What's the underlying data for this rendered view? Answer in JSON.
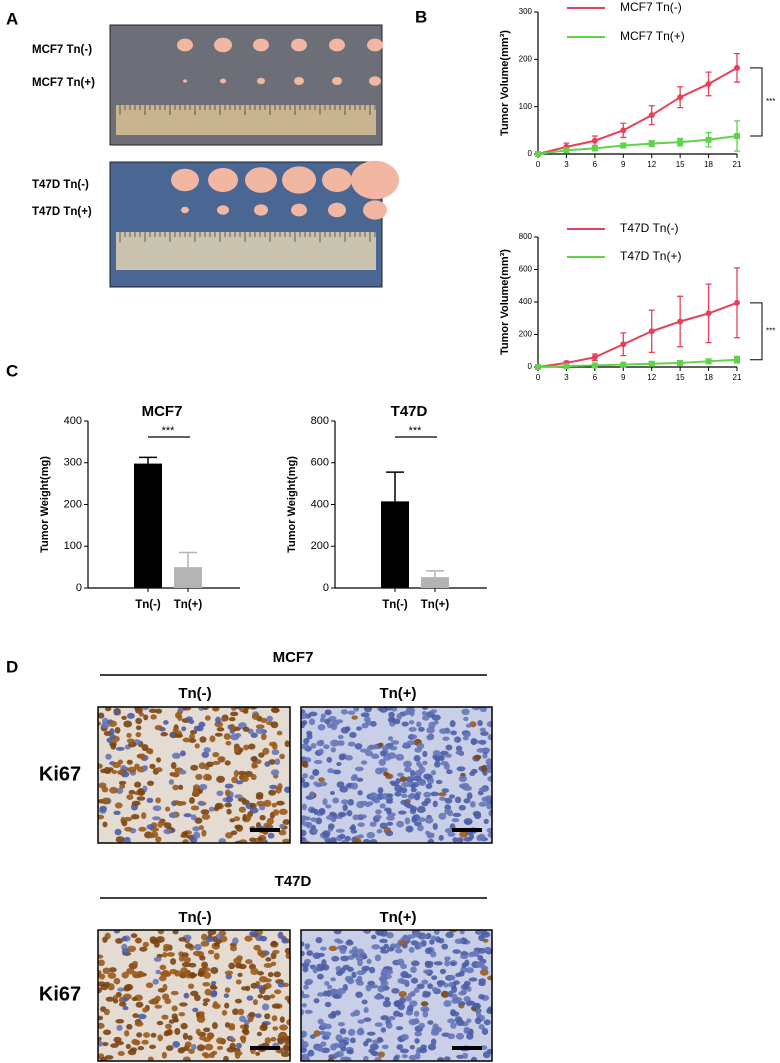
{
  "panel_labels": [
    "A",
    "B",
    "C",
    "D"
  ],
  "photos": [
    {
      "rows": [
        "MCF7 Tn(-)",
        "MCF7 Tn(+)"
      ]
    },
    {
      "rows": [
        "T47D Tn(-)",
        "T47D Tn(+)"
      ]
    }
  ],
  "chart_data": [
    {
      "type": "line",
      "ylabel": "Tumor Volume(mm³)",
      "x": [
        0,
        3,
        6,
        9,
        12,
        15,
        18,
        21
      ],
      "xlim": [
        0,
        21
      ],
      "xticks": [
        0,
        3,
        6,
        9,
        12,
        15,
        18,
        21
      ],
      "ylim": [
        0,
        300
      ],
      "yticks": [
        0,
        100,
        200,
        300
      ],
      "annotation": "***",
      "series": [
        {
          "name": "MCF7 Tn(-)",
          "color": "#e8405a",
          "marker": "circle",
          "values": [
            0,
            15,
            28,
            50,
            82,
            120,
            148,
            182
          ],
          "errors": [
            3,
            8,
            10,
            15,
            20,
            22,
            25,
            30
          ]
        },
        {
          "name": "MCF7 Tn(+)",
          "color": "#5fd34a",
          "marker": "square",
          "values": [
            0,
            8,
            12,
            18,
            22,
            25,
            30,
            38
          ],
          "errors": [
            2,
            4,
            5,
            5,
            6,
            8,
            15,
            32
          ]
        }
      ]
    },
    {
      "type": "line",
      "ylabel": "Tumor Volume(mm³)",
      "x": [
        0,
        3,
        6,
        9,
        12,
        15,
        18,
        21
      ],
      "xlim": [
        0,
        21
      ],
      "xticks": [
        0,
        3,
        6,
        9,
        12,
        15,
        18,
        21
      ],
      "ylim": [
        0,
        800
      ],
      "yticks": [
        0,
        200,
        400,
        600,
        800
      ],
      "annotation": "***",
      "series": [
        {
          "name": "T47D Tn(-)",
          "color": "#e8405a",
          "marker": "circle",
          "values": [
            0,
            25,
            60,
            140,
            220,
            280,
            330,
            395
          ],
          "errors": [
            5,
            10,
            20,
            70,
            130,
            155,
            180,
            215
          ]
        },
        {
          "name": "T47D Tn(+)",
          "color": "#5fd34a",
          "marker": "square",
          "values": [
            0,
            5,
            10,
            15,
            20,
            25,
            35,
            45
          ],
          "errors": [
            2,
            3,
            4,
            5,
            8,
            10,
            12,
            20
          ]
        }
      ]
    },
    {
      "type": "bar",
      "title": "MCF7",
      "ylabel": "Tumor Weight(mg)",
      "categories": [
        "Tn(-)",
        "Tn(+)"
      ],
      "values": [
        298,
        50
      ],
      "errors": [
        15,
        35
      ],
      "colors": [
        "#000000",
        "#b4b4b4"
      ],
      "ylim": [
        0,
        400
      ],
      "yticks": [
        0,
        100,
        200,
        300,
        400
      ],
      "annotation": "***"
    },
    {
      "type": "bar",
      "title": "T47D",
      "ylabel": "Tumor Weight(mg)",
      "categories": [
        "Tn(-)",
        "Tn(+)"
      ],
      "values": [
        415,
        52
      ],
      "errors": [
        140,
        30
      ],
      "colors": [
        "#000000",
        "#b4b4b4"
      ],
      "ylim": [
        0,
        800
      ],
      "yticks": [
        0,
        200,
        400,
        600,
        800
      ],
      "annotation": "***"
    }
  ],
  "micrographs": [
    {
      "title": "MCF7",
      "columns": [
        "Tn(-)",
        "Tn(+)"
      ],
      "row_label": "Ki67"
    },
    {
      "title": "T47D",
      "columns": [
        "Tn(-)",
        "Tn(+)"
      ],
      "row_label": "Ki67"
    }
  ]
}
